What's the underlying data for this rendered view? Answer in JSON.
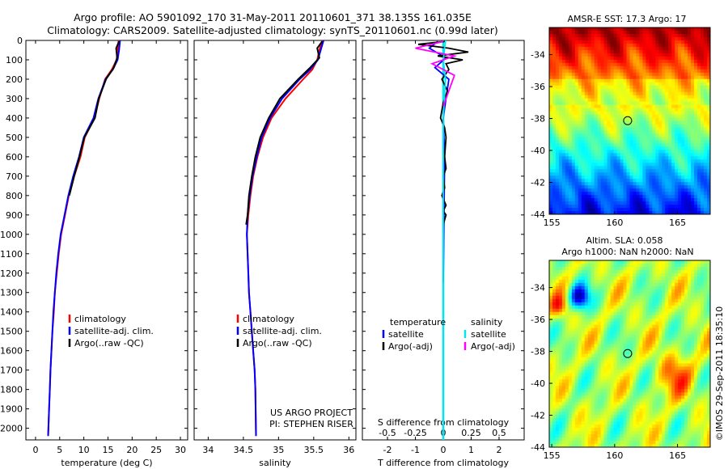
{
  "title": {
    "line1": "Argo profile: AO 5901092_170 31-May-2011 20110601_371 38.135S 161.035E",
    "line2": "Climatology: CARS2009. Satellite-adjusted climatology: synTS_20110601.nc (0.99d later)"
  },
  "project_credit": {
    "line1": "US ARGO PROJECT",
    "line2": "PI: STEPHEN RISER"
  },
  "side_stamp": "©IMOS 29-Sep-2011 18:35:10",
  "colors": {
    "climatology": "#ff0000",
    "satellite": "#0000ff",
    "argo": "#000000",
    "salinity_satellite": "#00e5ee",
    "salinity_argo": "#ff00ff",
    "ref_line": "#00e5ee"
  },
  "chart_data": [
    {
      "type": "line",
      "xlabel": "temperature (deg C)",
      "ylabel": "",
      "xlim": [
        -2,
        31.5
      ],
      "ylim": [
        2060,
        0
      ],
      "xticks": [
        0,
        5,
        10,
        15,
        20,
        25,
        30
      ],
      "yticks": [
        0,
        100,
        200,
        300,
        400,
        500,
        600,
        700,
        800,
        900,
        1000,
        1100,
        1200,
        1300,
        1400,
        1500,
        1600,
        1700,
        1800,
        1900,
        2000
      ],
      "legend": [
        "climatology",
        "satellite-adj. clim.",
        "Argo(..raw -QC)"
      ],
      "legend_placement": "lower-center",
      "series": [
        {
          "name": "climatology",
          "x": [
            17.2,
            17.0,
            16.8,
            15.8,
            14.4,
            13.2,
            12.2,
            10.2,
            9.3,
            8.0,
            6.9,
            6.1,
            5.3,
            4.8,
            4.4,
            4.0,
            3.8,
            3.5,
            3.3,
            3.1,
            2.95,
            2.8,
            2.6
          ],
          "y": [
            0,
            50,
            100,
            150,
            200,
            300,
            400,
            500,
            600,
            700,
            800,
            900,
            1000,
            1100,
            1200,
            1300,
            1400,
            1500,
            1600,
            1700,
            1800,
            1900,
            2040
          ]
        },
        {
          "name": "satellite-adj. clim.",
          "x": [
            17.5,
            17.3,
            17.0,
            16.0,
            14.5,
            13.0,
            12.0,
            10.0,
            9.0,
            7.8,
            6.8,
            6.0,
            5.2,
            4.7,
            4.3,
            4.0,
            3.7,
            3.5,
            3.3,
            3.1,
            2.95,
            2.8,
            2.6
          ],
          "y": [
            0,
            50,
            100,
            150,
            200,
            300,
            400,
            500,
            600,
            700,
            800,
            900,
            1000,
            1100,
            1200,
            1300,
            1400,
            1500,
            1600,
            1700,
            1800,
            1900,
            2040
          ]
        },
        {
          "name": "Argo(..raw -QC)",
          "x": [
            17.3,
            16.7,
            16.9,
            16.2,
            14.6,
            13.1,
            12.3,
            10.1,
            9.1,
            8.0,
            7.0
          ],
          "y": [
            5,
            40,
            90,
            140,
            200,
            300,
            400,
            500,
            600,
            700,
            800
          ]
        }
      ]
    },
    {
      "type": "line",
      "xlabel": "salinity",
      "ylabel": "",
      "xlim": [
        33.8,
        36.1
      ],
      "ylim": [
        2060,
        0
      ],
      "xticks": [
        34,
        34.5,
        35,
        35.5,
        36
      ],
      "legend": [
        "climatology",
        "satellite-adj. clim.",
        "Argo(..raw -QC)"
      ],
      "legend_placement": "lower-center",
      "series": [
        {
          "name": "climatology",
          "x": [
            35.62,
            35.58,
            35.55,
            35.48,
            35.35,
            35.1,
            34.9,
            34.78,
            34.7,
            34.64,
            34.6,
            34.57,
            34.55,
            34.56,
            34.57,
            34.58,
            34.6,
            34.62,
            34.64,
            34.66,
            34.67,
            34.68
          ],
          "y": [
            0,
            50,
            100,
            150,
            200,
            300,
            400,
            500,
            600,
            700,
            800,
            900,
            1000,
            1100,
            1200,
            1300,
            1400,
            1500,
            1600,
            1700,
            1800,
            2040
          ]
        },
        {
          "name": "satellite-adj. clim.",
          "x": [
            35.64,
            35.6,
            35.56,
            35.45,
            35.3,
            35.05,
            34.88,
            34.76,
            34.69,
            34.63,
            34.59,
            34.56,
            34.55,
            34.56,
            34.57,
            34.58,
            34.6,
            34.62,
            34.64,
            34.66,
            34.67,
            34.68
          ],
          "y": [
            0,
            50,
            100,
            150,
            200,
            300,
            400,
            500,
            600,
            700,
            800,
            900,
            1000,
            1100,
            1200,
            1300,
            1400,
            1500,
            1600,
            1700,
            1800,
            2040
          ]
        },
        {
          "name": "Argo(..raw -QC)",
          "x": [
            35.62,
            35.55,
            35.58,
            35.45,
            35.28,
            35.02,
            34.86,
            34.74,
            34.67,
            34.62,
            34.58,
            34.56,
            34.54
          ],
          "y": [
            5,
            40,
            90,
            140,
            200,
            300,
            400,
            500,
            600,
            700,
            800,
            900,
            950
          ]
        }
      ]
    },
    {
      "type": "line",
      "xlabel": "T difference from climatology",
      "x2label": "S difference from climatology",
      "ylabel": "",
      "xlim": [
        -2.9,
        2.9
      ],
      "ylim": [
        2060,
        0
      ],
      "xticks": [
        -2,
        -1,
        0,
        1,
        2
      ],
      "x2lim": [
        -0.725,
        0.725
      ],
      "x2ticks": [
        -0.5,
        -0.25,
        0,
        0.25,
        0.5
      ],
      "legend": {
        "temperature_header": "temperature",
        "salinity_header": "salinity",
        "temperature": [
          "satellite",
          "Argo(-adj)"
        ],
        "salinity": [
          "satellite",
          "Argo(-adj)"
        ]
      },
      "legend_placement": "lower-center",
      "series": [
        {
          "name": "temperature satellite",
          "x": [
            -0.2,
            -0.5,
            0.1,
            -0.3,
            0.2,
            0.1,
            0.0,
            0.05,
            0.0
          ],
          "y": [
            5,
            40,
            90,
            140,
            200,
            300,
            400,
            600,
            1250
          ]
        },
        {
          "name": "temperature Argo(-adj)",
          "x": [
            0.1,
            -0.9,
            0.2,
            0.9,
            -0.2,
            0.7,
            0.1,
            0.2,
            -0.05,
            0.15,
            0.0,
            -0.1,
            0.05,
            0.1,
            0.05,
            0.1,
            0.0,
            0.05,
            -0.05,
            0.1,
            0.0,
            0.1,
            0.0
          ],
          "y": [
            5,
            20,
            40,
            60,
            80,
            100,
            120,
            150,
            200,
            260,
            320,
            400,
            450,
            500,
            600,
            660,
            700,
            760,
            800,
            850,
            880,
            900,
            950
          ]
        },
        {
          "name": "salinity satellite",
          "x": [
            0.02,
            0.0,
            0.02,
            0.0,
            0.0
          ],
          "y": [
            0,
            100,
            200,
            400,
            2040
          ]
        },
        {
          "name": "salinity Argo(-adj)",
          "x": [
            0.0,
            -0.25,
            0.1,
            -0.1,
            0.1,
            0.05,
            0.0
          ],
          "y": [
            5,
            40,
            80,
            120,
            180,
            260,
            340
          ]
        }
      ]
    },
    {
      "type": "heatmap",
      "title": "AMSR-E SST: 17.3 Argo: 17",
      "xticks": [
        155,
        160,
        165
      ],
      "yticks": [
        -34,
        -36,
        -38,
        -40,
        -42,
        -44
      ],
      "xlim": [
        154.8,
        167.6
      ],
      "ylim": [
        -44,
        -32.3
      ],
      "marker": {
        "lon": 161.035,
        "lat": -38.135
      }
    },
    {
      "type": "heatmap",
      "title": "Altim. SLA: 0.058",
      "subtitle": "Argo h1000: NaN h2000: NaN",
      "xticks": [
        155,
        160,
        165
      ],
      "yticks": [
        -34,
        -36,
        -38,
        -40,
        -42,
        -44
      ],
      "xlim": [
        154.8,
        167.6
      ],
      "ylim": [
        -44,
        -32.3
      ],
      "marker": {
        "lon": 161.035,
        "lat": -38.135
      }
    }
  ]
}
